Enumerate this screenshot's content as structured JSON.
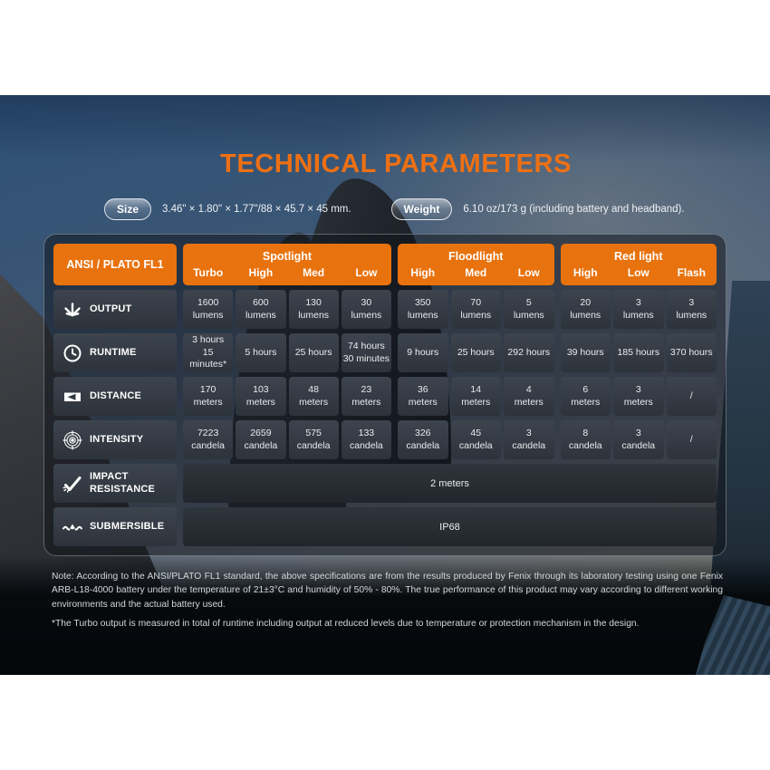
{
  "page": {
    "title": "TECHNICAL PARAMETERS"
  },
  "size": {
    "label": "Size",
    "value": "3.46\" × 1.80\" × 1.77\"/88 × 45.7 × 45 mm."
  },
  "weight": {
    "label": "Weight",
    "value": "6.10 oz/173 g (including battery and headband)."
  },
  "colors": {
    "accent_orange": "#e8720e",
    "title_orange": "#ed7014"
  },
  "table": {
    "corner_label": "ANSI / PLATO FL1",
    "groups": [
      {
        "label": "Spotlight",
        "cols": [
          "Turbo",
          "High",
          "Med",
          "Low"
        ]
      },
      {
        "label": "Floodlight",
        "cols": [
          "High",
          "Med",
          "Low"
        ]
      },
      {
        "label": "Red light",
        "cols": [
          "High",
          "Low",
          "Flash"
        ]
      }
    ],
    "rows": [
      {
        "label": "OUTPUT",
        "icon": "output-icon",
        "cells": [
          "1600\nlumens",
          "600\nlumens",
          "130\nlumens",
          "30\nlumens",
          "350\nlumens",
          "70\nlumens",
          "5\nlumens",
          "20\nlumens",
          "3\nlumens",
          "3\nlumens"
        ]
      },
      {
        "label": "RUNTIME",
        "icon": "runtime-icon",
        "cells": [
          "3 hours\n15 minutes*",
          "5 hours",
          "25 hours",
          "74 hours\n30 minutes",
          "9 hours",
          "25 hours",
          "292 hours",
          "39 hours",
          "185 hours",
          "370 hours"
        ]
      },
      {
        "label": "DISTANCE",
        "icon": "distance-icon",
        "cells": [
          "170\nmeters",
          "103\nmeters",
          "48\nmeters",
          "23\nmeters",
          "36\nmeters",
          "14\nmeters",
          "4\nmeters",
          "6\nmeters",
          "3\nmeters",
          "/"
        ]
      },
      {
        "label": "INTENSITY",
        "icon": "intensity-icon",
        "cells": [
          "7223\ncandela",
          "2659\ncandela",
          "575\ncandela",
          "133\ncandela",
          "326\ncandela",
          "45\ncandela",
          "3\ncandela",
          "8\ncandela",
          "3\ncandela",
          "/"
        ]
      },
      {
        "label": "IMPACT RESISTANCE",
        "icon": "impact-icon",
        "span": "2 meters"
      },
      {
        "label": "SUBMERSIBLE",
        "icon": "submersible-icon",
        "span": "IP68"
      }
    ]
  },
  "footnotes": [
    "Note: According to the ANSI/PLATO FL1 standard, the above specifications are from the results produced by Fenix through its laboratory testing using one Fenix ARB-L18-4000 battery under the temperature of 21±3°C and humidity of 50% - 80%. The true performance of this product may vary according to different working environments and the actual battery used.",
    "*The Turbo output is measured in total of runtime including output at reduced levels due to temperature or protection mechanism in the design."
  ]
}
